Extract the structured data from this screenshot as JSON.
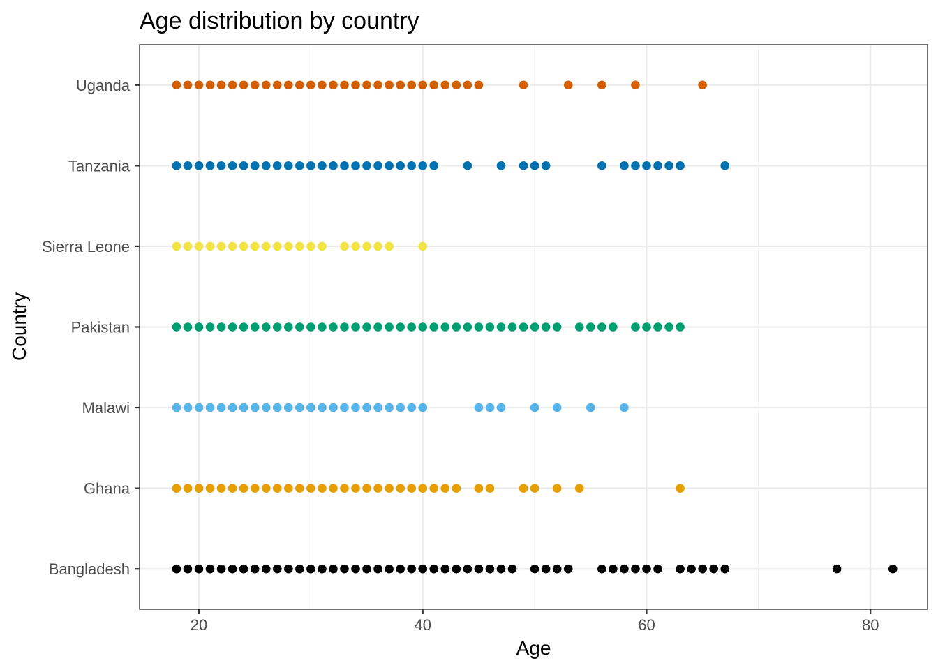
{
  "chart_data": {
    "type": "scatter",
    "title": "Age distribution by country",
    "xlabel": "Age",
    "ylabel": "Country",
    "xlim": [
      14.7,
      85.1
    ],
    "x_ticks": [
      20,
      40,
      60,
      80
    ],
    "x_tick_labels": [
      "20",
      "40",
      "60",
      "80"
    ],
    "grid": true,
    "legend": "none",
    "categories": [
      "Bangladesh",
      "Ghana",
      "Malawi",
      "Pakistan",
      "Sierra Leone",
      "Tanzania",
      "Uganda"
    ],
    "series": [
      {
        "category": "Bangladesh",
        "color": "#000000",
        "x": [
          18,
          19,
          20,
          21,
          22,
          23,
          24,
          25,
          26,
          27,
          28,
          29,
          30,
          31,
          32,
          33,
          34,
          35,
          36,
          37,
          38,
          39,
          40,
          41,
          42,
          43,
          44,
          45,
          46,
          47,
          48,
          50,
          51,
          52,
          53,
          56,
          57,
          58,
          59,
          60,
          61,
          63,
          64,
          65,
          66,
          67,
          77,
          82
        ]
      },
      {
        "category": "Ghana",
        "color": "#E69F00",
        "x": [
          18,
          19,
          20,
          21,
          22,
          23,
          24,
          25,
          26,
          27,
          28,
          29,
          30,
          31,
          32,
          33,
          34,
          35,
          36,
          37,
          38,
          39,
          40,
          41,
          42,
          43,
          45,
          46,
          49,
          50,
          52,
          54,
          63
        ]
      },
      {
        "category": "Malawi",
        "color": "#56B4E9",
        "x": [
          18,
          19,
          20,
          21,
          22,
          23,
          24,
          25,
          26,
          27,
          28,
          29,
          30,
          31,
          32,
          33,
          34,
          35,
          36,
          37,
          38,
          39,
          40,
          45,
          46,
          47,
          50,
          52,
          55,
          58
        ]
      },
      {
        "category": "Pakistan",
        "color": "#009E73",
        "x": [
          18,
          19,
          20,
          21,
          22,
          23,
          24,
          25,
          26,
          27,
          28,
          29,
          30,
          31,
          32,
          33,
          34,
          35,
          36,
          37,
          38,
          39,
          40,
          41,
          42,
          43,
          44,
          45,
          46,
          47,
          48,
          49,
          50,
          51,
          52,
          54,
          55,
          56,
          57,
          59,
          60,
          61,
          62,
          63
        ]
      },
      {
        "category": "Sierra Leone",
        "color": "#F0E442",
        "x": [
          18,
          19,
          20,
          21,
          22,
          23,
          24,
          25,
          26,
          27,
          28,
          29,
          30,
          31,
          33,
          34,
          35,
          36,
          37,
          40
        ]
      },
      {
        "category": "Tanzania",
        "color": "#0072B2",
        "x": [
          18,
          19,
          20,
          21,
          22,
          23,
          24,
          25,
          26,
          27,
          28,
          29,
          30,
          31,
          32,
          33,
          34,
          35,
          36,
          37,
          38,
          39,
          40,
          41,
          44,
          47,
          49,
          50,
          51,
          56,
          58,
          59,
          60,
          61,
          62,
          63,
          67
        ]
      },
      {
        "category": "Uganda",
        "color": "#D55E00",
        "x": [
          18,
          19,
          20,
          21,
          22,
          23,
          24,
          25,
          26,
          27,
          28,
          29,
          30,
          31,
          32,
          33,
          34,
          35,
          36,
          37,
          38,
          39,
          40,
          41,
          42,
          43,
          44,
          45,
          49,
          53,
          56,
          59,
          65
        ]
      }
    ]
  }
}
